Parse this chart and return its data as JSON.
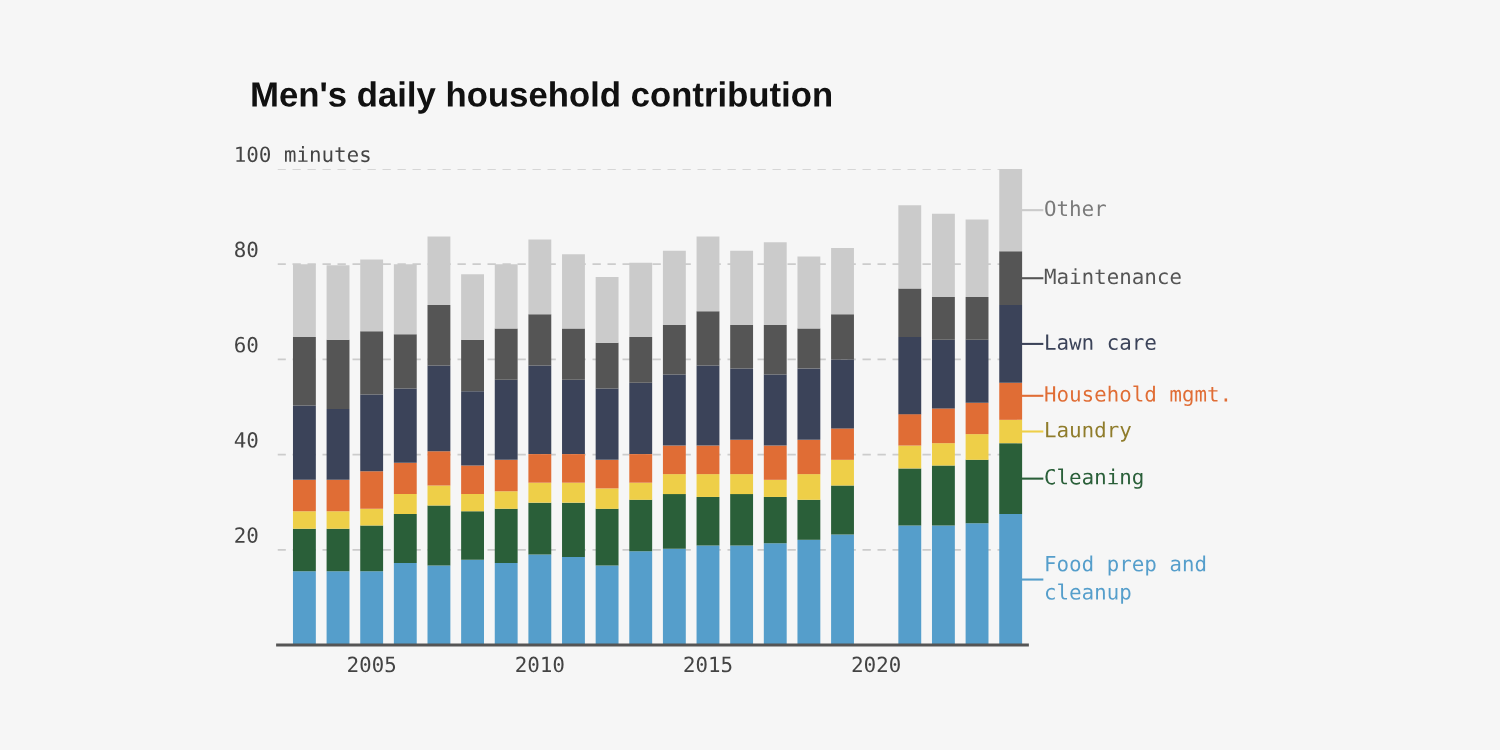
{
  "chart_data": {
    "type": "bar",
    "title": "Men's daily household contribution",
    "stacked": true,
    "x": [
      2003,
      2004,
      2005,
      2006,
      2007,
      2008,
      2009,
      2010,
      2011,
      2012,
      2013,
      2014,
      2015,
      2016,
      2017,
      2018,
      2019,
      2020,
      2021,
      2022,
      2023,
      2024
    ],
    "xlim": [
      2002.2,
      2024.5
    ],
    "xticks": [
      2005,
      2010,
      2015,
      2020
    ],
    "ylim": [
      0,
      100
    ],
    "yticks": [
      20,
      40,
      60,
      80,
      {
        "value": 100,
        "label": "100 minutes"
      }
    ],
    "grid": "y",
    "legend": "right",
    "series": [
      {
        "name": "Food prep and\ncleanup",
        "color": "#559ecb",
        "values": [
          15.5,
          15.5,
          15.5,
          17.2,
          16.7,
          17.9,
          17.2,
          19.0,
          18.5,
          16.7,
          19.7,
          20.2,
          20.9,
          20.9,
          21.4,
          22.1,
          23.2,
          null,
          25.1,
          25.1,
          25.6,
          27.5
        ]
      },
      {
        "name": "Cleaning",
        "color": "#2a5f39",
        "values": [
          8.9,
          8.9,
          9.6,
          10.3,
          12.6,
          10.2,
          11.4,
          10.9,
          11.4,
          11.9,
          10.8,
          11.5,
          10.2,
          10.8,
          9.7,
          8.4,
          10.3,
          null,
          12.0,
          12.6,
          13.3,
          14.9
        ]
      },
      {
        "name": "Laundry",
        "color": "#eecf48",
        "values": [
          3.7,
          3.7,
          3.5,
          4.2,
          4.2,
          3.6,
          3.7,
          4.2,
          4.2,
          4.3,
          3.6,
          4.2,
          4.8,
          4.2,
          3.6,
          5.4,
          5.4,
          null,
          4.8,
          4.7,
          5.4,
          4.9
        ]
      },
      {
        "name": "Household mgmt.",
        "color": "#e06d35",
        "values": [
          6.6,
          6.6,
          7.9,
          6.6,
          7.2,
          6.0,
          6.6,
          6.0,
          6.0,
          6.0,
          6.0,
          6.0,
          6.0,
          7.2,
          7.2,
          7.2,
          6.6,
          null,
          6.6,
          7.3,
          6.6,
          7.8
        ]
      },
      {
        "name": "Lawn care",
        "color": "#3b4359",
        "values": [
          15.6,
          14.9,
          16.1,
          15.6,
          18.0,
          15.6,
          16.8,
          18.6,
          15.6,
          15.0,
          15.0,
          14.9,
          16.8,
          15.0,
          14.9,
          15.0,
          14.5,
          null,
          16.2,
          14.4,
          13.2,
          16.3
        ]
      },
      {
        "name": "Maintenance",
        "color": "#555555",
        "values": [
          14.4,
          14.5,
          13.3,
          11.4,
          12.7,
          10.8,
          10.8,
          10.8,
          10.8,
          9.6,
          9.6,
          10.4,
          11.4,
          9.1,
          10.4,
          8.4,
          9.5,
          null,
          10.2,
          9.0,
          9.0,
          11.3
        ]
      },
      {
        "name": "Other",
        "color": "#cbcbcb",
        "values": [
          15.3,
          15.7,
          15.1,
          14.7,
          14.4,
          13.8,
          13.5,
          15.7,
          15.6,
          13.8,
          15.6,
          15.6,
          15.7,
          15.6,
          17.4,
          15.1,
          13.9,
          null,
          17.5,
          17.5,
          16.3,
          17.3
        ]
      }
    ]
  }
}
